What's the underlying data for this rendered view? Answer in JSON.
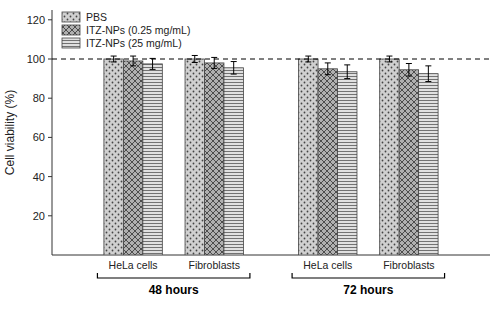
{
  "chart_data": {
    "type": "bar",
    "ylabel": "Cell viability (%)",
    "categories": [
      "HeLa cells",
      "Fibroblasts",
      "HeLa cells",
      "Fibroblasts"
    ],
    "annotations": [
      "48 hours",
      "72 hours"
    ],
    "series": [
      {
        "name": "PBS",
        "color": "#d0d0d0",
        "values": [
          100.0,
          100.0,
          100.0,
          100.0
        ],
        "errors": [
          1.5,
          1.8,
          1.5,
          1.5
        ]
      },
      {
        "name": "ITZ-NPs (0.25 mg/mL)",
        "color": "#b0b0b0",
        "values": [
          99.0,
          98.0,
          95.0,
          94.5
        ],
        "errors": [
          2.5,
          2.8,
          3.0,
          3.2
        ]
      },
      {
        "name": "ITZ-NPs (25 mg/mL)",
        "color": "#e0e0e0",
        "values": [
          97.5,
          95.5,
          93.5,
          92.5
        ],
        "errors": [
          2.8,
          3.2,
          3.5,
          4.0
        ]
      }
    ],
    "reference_line": 100,
    "ylim": [
      0,
      125
    ],
    "yticks": [
      20,
      40,
      60,
      80,
      100,
      120
    ],
    "grid": false,
    "legend": "upper left"
  }
}
